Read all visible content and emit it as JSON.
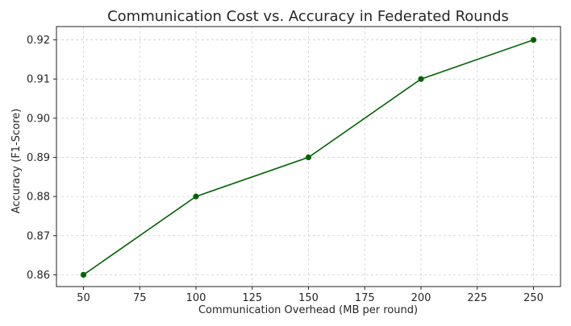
{
  "chart_data": {
    "type": "line",
    "title": "Communication Cost vs. Accuracy in Federated Rounds",
    "xlabel": "Communication Overhead (MB per round)",
    "ylabel": "Accuracy (F1-Score)",
    "x": [
      50,
      100,
      150,
      200,
      250
    ],
    "series": [
      {
        "values": [
          0.86,
          0.88,
          0.89,
          0.91,
          0.92
        ],
        "color": "#006400",
        "marker": "circle"
      }
    ],
    "xlim": [
      38,
      262
    ],
    "ylim": [
      0.857,
      0.9234
    ],
    "xticks": [
      50,
      75,
      100,
      125,
      150,
      175,
      200,
      225,
      250
    ],
    "xtick_labels": [
      "50",
      "75",
      "100",
      "125",
      "150",
      "175",
      "200",
      "225",
      "250"
    ],
    "yticks": [
      0.86,
      0.87,
      0.88,
      0.89,
      0.9,
      0.91,
      0.92
    ],
    "ytick_labels": [
      "0.86",
      "0.87",
      "0.88",
      "0.89",
      "0.90",
      "0.91",
      "0.92"
    ],
    "grid": true
  }
}
